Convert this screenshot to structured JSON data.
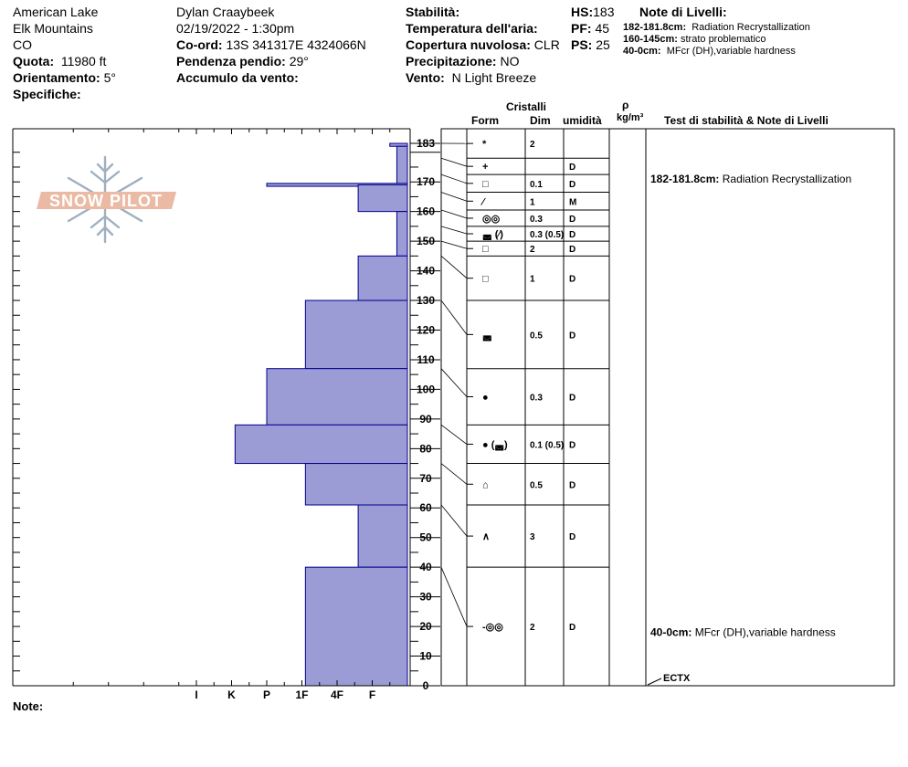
{
  "header": {
    "location": "American Lake",
    "range": "Elk Mountains",
    "state": "CO",
    "elevation_label": "Quota:",
    "elevation_value": "11980 ft",
    "aspect_label": "Orientamento:",
    "aspect_value": "5°",
    "specifics_label": "Specifiche:",
    "observer": "Dylan Craaybeek",
    "datetime": "02/19/2022 - 1:30pm",
    "coord_label": "Co-ord:",
    "coord_value": "13S 341317E 4324066N",
    "slope_label": "Pendenza pendio:",
    "slope_value": "29°",
    "wind_loading_label": "Accumulo da vento:",
    "wind_loading_value": "",
    "stability_label": "Stabilità:",
    "stability_value": "",
    "air_temp_label": "Temperatura dell'aria:",
    "air_temp_value": "",
    "cloud_label": "Copertura nuvolosa:",
    "cloud_value": "CLR",
    "precip_label": "Precipitazione:",
    "precip_value": "NO",
    "wind_label": "Vento:",
    "wind_value": "N Light Breeze",
    "hs_label": "HS:",
    "hs_value": "183",
    "pf_label": "PF:",
    "pf_value": "45",
    "ps_label": "PS:",
    "ps_value": "25",
    "layer_notes_title": "Note di Livelli:",
    "layer_notes": [
      {
        "range": "182-181.8cm:",
        "text": "Radiation Recrystallization"
      },
      {
        "range": "160-145cm:",
        "text": "strato problematico"
      },
      {
        "range": "40-0cm:",
        "text": "MFcr (DH),variable hardness"
      }
    ]
  },
  "table_headers": {
    "crystals": "Cristalli",
    "form": "Form",
    "size": "Dim",
    "moisture": "umidità",
    "rho": "ρ",
    "density_unit": "kg/m³",
    "tests": "Test di stabilità & Note di Livelli"
  },
  "watermark": "SNOW PILOT",
  "notes_label": "Note:",
  "colors": {
    "fill": "#9b9bd6",
    "edge": "#00008b"
  },
  "chart_data": {
    "type": "bar",
    "orientation": "horizontal",
    "title": "",
    "xlabel": "",
    "ylabel": "",
    "ylim": [
      0,
      183
    ],
    "y_ticks": [
      0,
      10,
      20,
      30,
      40,
      50,
      60,
      70,
      80,
      90,
      100,
      110,
      120,
      130,
      140,
      150,
      160,
      170,
      183
    ],
    "hardness_ticks": [
      "I",
      "K",
      "P",
      "1F",
      "4F",
      "F"
    ],
    "hardness_scale_note": "hardness index values: F=1, 4F=2, 1F=3, P=4, K=5, I=6",
    "layers": [
      {
        "top": 183,
        "bottom": 182,
        "hardness": 0.5
      },
      {
        "top": 182,
        "bottom": 169,
        "hardness": 0.3
      },
      {
        "top": 169.5,
        "bottom": 168.5,
        "hardness": 4.0
      },
      {
        "top": 169,
        "bottom": 160,
        "hardness": 1.4
      },
      {
        "top": 160,
        "bottom": 145,
        "hardness": 0.3
      },
      {
        "top": 145,
        "bottom": 130,
        "hardness": 1.4
      },
      {
        "top": 130,
        "bottom": 107,
        "hardness": 2.9
      },
      {
        "top": 107,
        "bottom": 88,
        "hardness": 4.0
      },
      {
        "top": 88,
        "bottom": 75,
        "hardness": 4.9
      },
      {
        "top": 75,
        "bottom": 61,
        "hardness": 2.9
      },
      {
        "top": 61,
        "bottom": 40,
        "hardness": 1.4
      },
      {
        "top": 40,
        "bottom": 0,
        "hardness": 2.9
      }
    ],
    "crystal_rows": [
      {
        "top": 183,
        "bottom": 178,
        "form": "*",
        "size": "2",
        "moisture": ""
      },
      {
        "top": 178,
        "bottom": 172.5,
        "form": "+",
        "size": "",
        "moisture": "D"
      },
      {
        "top": 172.5,
        "bottom": 166.5,
        "form": "□",
        "size": "0.1",
        "moisture": "D"
      },
      {
        "top": 166.5,
        "bottom": 160.5,
        "form": "⁄",
        "size": "1",
        "moisture": "M"
      },
      {
        "top": 160.5,
        "bottom": 155,
        "form": "◎◎",
        "size": "0.3",
        "moisture": "D"
      },
      {
        "top": 155,
        "bottom": 150,
        "form": "◛ (⁄)",
        "size": "0.3 (0.5)",
        "moisture": "D"
      },
      {
        "top": 150,
        "bottom": 145,
        "form": "□",
        "size": "2",
        "moisture": "D"
      },
      {
        "top": 145,
        "bottom": 130,
        "form": "□",
        "size": "1",
        "moisture": "D"
      },
      {
        "top": 130,
        "bottom": 107,
        "form": "◛",
        "size": "0.5",
        "moisture": "D"
      },
      {
        "top": 107,
        "bottom": 88,
        "form": "●",
        "size": "0.3",
        "moisture": "D"
      },
      {
        "top": 88,
        "bottom": 75,
        "form": "● (◛)",
        "size": "0.1 (0.5)",
        "moisture": "D"
      },
      {
        "top": 75,
        "bottom": 61,
        "form": "⌂",
        "size": "0.5",
        "moisture": "D"
      },
      {
        "top": 61,
        "bottom": 40,
        "form": "∧",
        "size": "3",
        "moisture": "D"
      },
      {
        "top": 40,
        "bottom": 0,
        "form": "-◎◎",
        "size": "2",
        "moisture": "D"
      }
    ],
    "annotations": [
      {
        "depth": 171,
        "range": "182-181.8cm:",
        "text": "Radiation Recrystallization"
      },
      {
        "depth": 18,
        "range": "40-0cm:",
        "text": "MFcr (DH),variable hardness"
      }
    ],
    "stability_tests": [
      {
        "depth": 0,
        "label": "ECTX"
      }
    ]
  }
}
